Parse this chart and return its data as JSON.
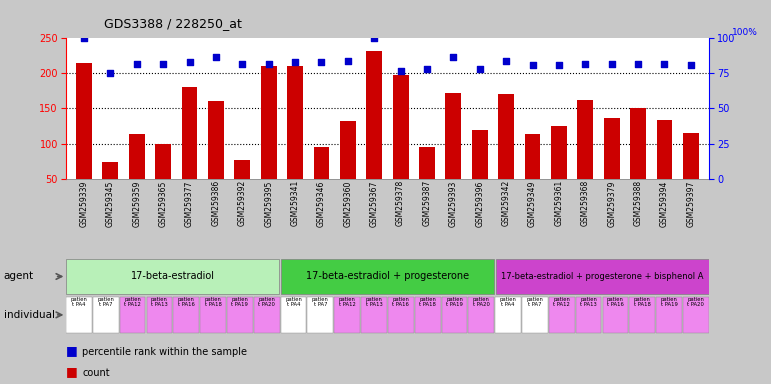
{
  "title": "GDS3388 / 228250_at",
  "gsm_ids": [
    "GSM259339",
    "GSM259345",
    "GSM259359",
    "GSM259365",
    "GSM259377",
    "GSM259386",
    "GSM259392",
    "GSM259395",
    "GSM259341",
    "GSM259346",
    "GSM259360",
    "GSM259367",
    "GSM259378",
    "GSM259387",
    "GSM259393",
    "GSM259396",
    "GSM259342",
    "GSM259349",
    "GSM259361",
    "GSM259368",
    "GSM259379",
    "GSM259388",
    "GSM259394",
    "GSM259397"
  ],
  "counts": [
    215,
    73,
    113,
    100,
    180,
    160,
    77,
    210,
    211,
    95,
    132,
    232,
    198,
    95,
    172,
    120,
    171,
    113,
    125,
    162,
    136,
    150,
    134,
    115
  ],
  "percentile_ranks": [
    100,
    75,
    82,
    82,
    83,
    87,
    82,
    82,
    83,
    83,
    84,
    100,
    77,
    78,
    87,
    78,
    84,
    81,
    81,
    82,
    82,
    82,
    82,
    81
  ],
  "bar_color": "#cc0000",
  "dot_color": "#0000cc",
  "agent_colors": {
    "17-beta-estradiol": "#b8f0b8",
    "17-beta-estradiol + progesterone": "#44cc44",
    "17-beta-estradiol + progesterone + bisphenol A": "#cc44cc"
  },
  "agent_groups": [
    [
      0,
      8,
      "17-beta-estradiol"
    ],
    [
      8,
      16,
      "17-beta-estradiol + progesterone"
    ],
    [
      16,
      24,
      "17-beta-estradiol + progesterone + bisphenol A"
    ]
  ],
  "ind_labels": [
    "PA4",
    "PA7",
    "PA12",
    "PA13",
    "PA16",
    "PA18",
    "PA19",
    "PA20"
  ],
  "ind_colors": [
    "#ffffff",
    "#ffffff",
    "#ee88ee",
    "#ee88ee",
    "#ee88ee",
    "#ee88ee",
    "#ee88ee",
    "#ee88ee"
  ],
  "ylim_left": [
    50,
    250
  ],
  "ylim_right": [
    0,
    100
  ],
  "yticks_left": [
    50,
    100,
    150,
    200,
    250
  ],
  "yticks_right": [
    0,
    25,
    50,
    75,
    100
  ],
  "hlines": [
    100,
    150,
    200
  ],
  "background_color": "#c8c8c8",
  "plot_bg": "#ffffff",
  "gsm_bg": "#c8c8c8"
}
